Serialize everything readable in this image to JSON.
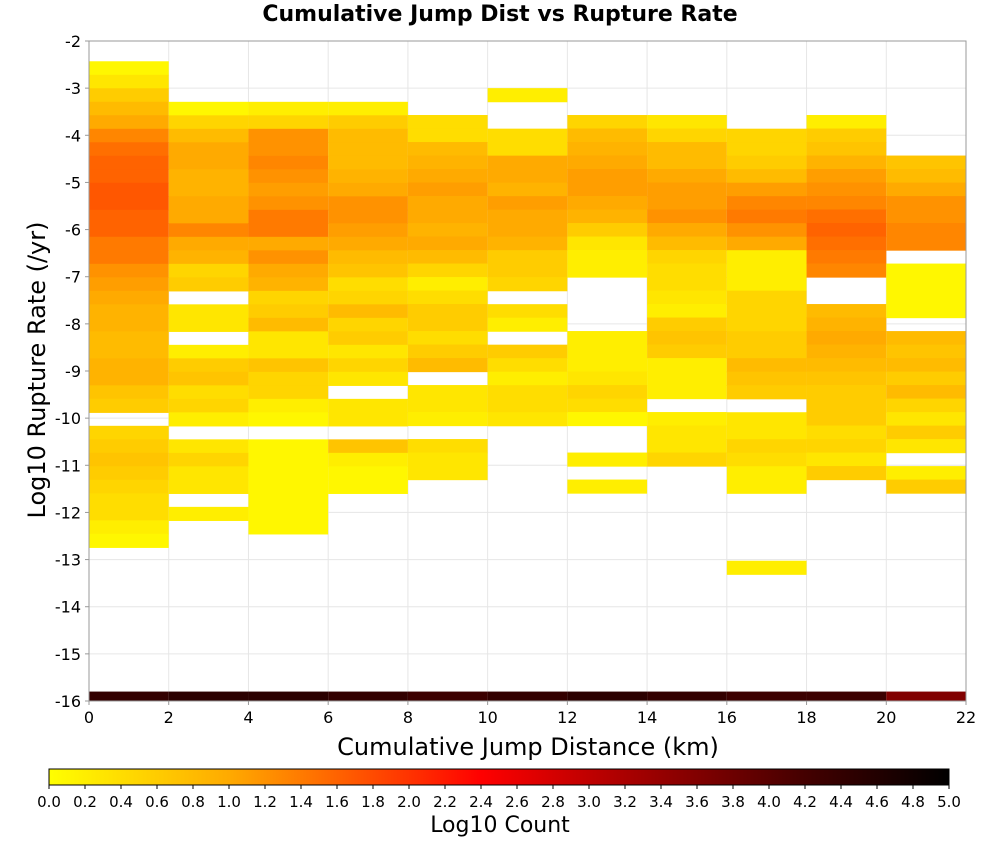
{
  "chart_data": {
    "type": "heatmap",
    "title": "Cumulative Jump Dist vs Rupture Rate",
    "xlabel": "Cumulative Jump Distance (km)",
    "ylabel": "Log10 Rupture Rate (/yr)",
    "colorbar_label": "Log10 Count",
    "xlim": [
      0,
      22
    ],
    "ylim": [
      -16,
      -2
    ],
    "x_ticks": [
      "0",
      "2",
      "4",
      "6",
      "8",
      "10",
      "12",
      "14",
      "16",
      "18",
      "20",
      "22"
    ],
    "y_ticks": [
      "-2",
      "-3",
      "-4",
      "-5",
      "-6",
      "-7",
      "-8",
      "-9",
      "-10",
      "-11",
      "-12",
      "-13",
      "-14",
      "-15",
      "-16"
    ],
    "colorbar_ticks": [
      "0.0",
      "0.2",
      "0.4",
      "0.6",
      "0.8",
      "1.0",
      "1.2",
      "1.4",
      "1.6",
      "1.8",
      "2.0",
      "2.2",
      "2.4",
      "2.6",
      "2.8",
      "3.0",
      "3.2",
      "3.4",
      "3.6",
      "3.8",
      "4.0",
      "4.2",
      "4.4",
      "4.6",
      "4.8",
      "5.0"
    ],
    "colorscale": {
      "min": 0,
      "max": 5,
      "stops": [
        [
          0.0,
          "#ffff00"
        ],
        [
          1.0,
          "#ffaa00"
        ],
        [
          2.0,
          "#ff3300"
        ],
        [
          2.4,
          "#ff0000"
        ],
        [
          3.2,
          "#aa0000"
        ],
        [
          4.2,
          "#440000"
        ],
        [
          5.0,
          "#000000"
        ]
      ]
    },
    "x_bin_width": 2,
    "y_bin_height": 0.2864,
    "grid": true,
    "columns": [
      {
        "x0": 0,
        "top": -2.43,
        "values": [
          0.1,
          0.3,
          0.6,
          0.8,
          1.0,
          1.3,
          1.5,
          1.6,
          1.6,
          1.7,
          1.7,
          1.6,
          1.6,
          1.4,
          1.4,
          1.2,
          1.1,
          1.0,
          0.9,
          0.9,
          0.8,
          0.8,
          0.9,
          0.9,
          0.7,
          0.6,
          null,
          0.5,
          0.6,
          0.7,
          0.6,
          0.5,
          0.4,
          0.4,
          0.2,
          0.1
        ]
      },
      {
        "x0": 2,
        "top": -3.29,
        "values": [
          0.1,
          0.5,
          0.8,
          1.0,
          1.0,
          0.9,
          0.9,
          1.0,
          1.0,
          1.3,
          1.0,
          0.9,
          0.5,
          0.6,
          null,
          0.3,
          0.3,
          null,
          0.2,
          0.6,
          0.7,
          0.4,
          0.5,
          0.2,
          null,
          0.3,
          0.5,
          0.3,
          0.3,
          null,
          0.2
        ]
      },
      {
        "x0": 4,
        "top": -3.29,
        "values": [
          0.2,
          0.5,
          1.2,
          1.2,
          1.3,
          1.2,
          1.1,
          1.2,
          1.4,
          1.4,
          1.0,
          1.2,
          1.0,
          0.9,
          0.5,
          0.6,
          0.8,
          0.3,
          0.3,
          0.7,
          0.5,
          0.5,
          0.2,
          0.1,
          null,
          0.1,
          0.1,
          0.1,
          0.1,
          0.1,
          0.1,
          0.1
        ]
      },
      {
        "x0": 6,
        "top": -3.29,
        "values": [
          0.2,
          0.6,
          0.8,
          0.8,
          0.8,
          0.9,
          1.0,
          1.2,
          1.2,
          1.1,
          1.0,
          0.8,
          0.7,
          0.4,
          0.5,
          0.8,
          0.5,
          0.6,
          0.3,
          0.5,
          0.3,
          null,
          0.3,
          0.3,
          null,
          0.7,
          0.2,
          0.1,
          0.1
        ]
      },
      {
        "x0": 8,
        "top": -3.57,
        "values": [
          0.4,
          0.4,
          0.8,
          0.9,
          1.0,
          1.1,
          1.0,
          1.0,
          0.9,
          1.0,
          0.8,
          0.5,
          0.2,
          0.4,
          0.6,
          0.6,
          0.4,
          0.6,
          0.8,
          null,
          0.3,
          0.3,
          0.2,
          null,
          0.4,
          0.3,
          0.3
        ]
      },
      {
        "x0": 10,
        "top": -3.0,
        "values": [
          0.2,
          null,
          null,
          0.4,
          0.4,
          1.0,
          1.0,
          0.9,
          1.1,
          1.0,
          1.0,
          0.9,
          0.6,
          0.6,
          0.5,
          null,
          0.4,
          0.2,
          null,
          0.6,
          0.4,
          0.2,
          0.4,
          0.4,
          0.3
        ]
      },
      {
        "x0": 12,
        "top": -3.57,
        "values": [
          0.5,
          0.8,
          0.9,
          1.0,
          1.1,
          1.1,
          1.0,
          0.9,
          0.6,
          0.3,
          0.2,
          0.2,
          null,
          null,
          null,
          null,
          0.2,
          0.2,
          0.2,
          0.3,
          0.5,
          0.4,
          0.1,
          null,
          null,
          0.2,
          null,
          0.2
        ]
      },
      {
        "x0": 14,
        "top": -3.57,
        "values": [
          0.3,
          0.5,
          0.8,
          0.8,
          1.0,
          1.1,
          1.1,
          1.2,
          1.0,
          0.8,
          0.5,
          0.4,
          0.4,
          0.3,
          0.2,
          0.6,
          0.7,
          0.6,
          0.2,
          0.2,
          0.2,
          null,
          0.2,
          0.3,
          0.3,
          0.5
        ]
      },
      {
        "x0": 16,
        "top": -3.86,
        "values": [
          0.5,
          0.5,
          0.6,
          0.8,
          1.1,
          1.3,
          1.4,
          1.2,
          1.0,
          0.2,
          0.2,
          0.2,
          0.5,
          0.5,
          0.5,
          0.6,
          0.6,
          0.8,
          0.7,
          0.6,
          null,
          0.3,
          0.3,
          0.5,
          0.4,
          0.2,
          0.2,
          null,
          null,
          null,
          null,
          null,
          0.2
        ]
      },
      {
        "x0": 18,
        "top": -3.57,
        "values": [
          0.2,
          0.6,
          0.7,
          0.9,
          1.1,
          1.2,
          1.3,
          1.5,
          1.6,
          1.5,
          1.4,
          1.3,
          null,
          null,
          0.8,
          0.9,
          1.0,
          0.9,
          0.8,
          0.7,
          0.6,
          0.6,
          0.6,
          0.4,
          0.5,
          0.3,
          0.6
        ]
      },
      {
        "x0": 20,
        "top": -4.43,
        "values": [
          0.7,
          0.8,
          1.0,
          1.2,
          1.2,
          1.3,
          1.3,
          null,
          0.1,
          0.1,
          0.1,
          0.1,
          null,
          0.8,
          0.7,
          0.8,
          0.6,
          0.8,
          0.5,
          0.3,
          0.6,
          0.3,
          null,
          0.2,
          0.6
        ]
      }
    ],
    "bottom_row": {
      "y0": -16,
      "height": 0.2,
      "values": [
        4.4,
        4.5,
        4.5,
        4.4,
        4.3,
        4.4,
        4.5,
        4.4,
        4.3,
        4.3,
        3.6
      ]
    }
  }
}
